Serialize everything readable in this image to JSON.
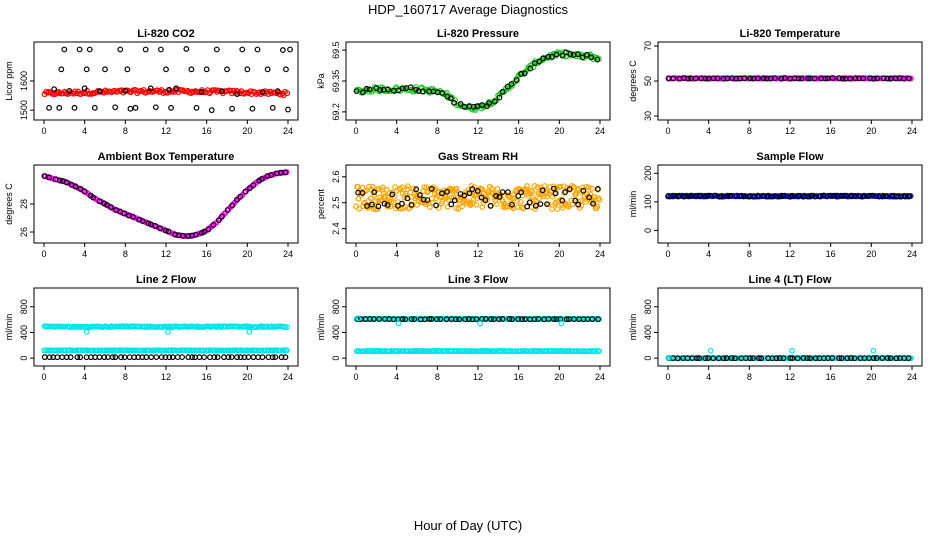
{
  "title": "HDP_160717  Average Diagnostics",
  "xlabel": "Hour of Day (UTC)",
  "colors": {
    "black": "#000000",
    "red": "#ff0000",
    "green": "#22cc22",
    "magenta": "#ff00ff",
    "orange": "#ffa500",
    "blue": "#0000cc",
    "cyan": "#00e5e5"
  },
  "x_ticks": [
    "0",
    "4",
    "8",
    "12",
    "16",
    "20",
    "24"
  ],
  "chart_data": [
    {
      "type": "scatter",
      "title": "Li-820 CO2",
      "ylabel": "Licor ppm",
      "xlim": [
        0,
        24
      ],
      "ylim": [
        1480,
        1720
      ],
      "yticks": [
        1500,
        1600
      ],
      "series": [
        {
          "color": "#ff0000",
          "style": "band",
          "y_start": 1557,
          "y_end": 1560,
          "y_mid": 1572,
          "noise": 6
        },
        {
          "color": "#000000",
          "points": [
            [
              0.5,
              1508
            ],
            [
              1,
              1572
            ],
            [
              1.5,
              1508
            ],
            [
              1.7,
              1640
            ],
            [
              2,
              1708
            ],
            [
              2.5,
              1566
            ],
            [
              3,
              1508
            ],
            [
              3.5,
              1708
            ],
            [
              4,
              1575
            ],
            [
              4.2,
              1640
            ],
            [
              4.5,
              1708
            ],
            [
              5,
              1508
            ],
            [
              5.5,
              1565
            ],
            [
              6,
              1640
            ],
            [
              7,
              1510
            ],
            [
              7.5,
              1708
            ],
            [
              8,
              1566
            ],
            [
              8.2,
              1640
            ],
            [
              8.5,
              1505
            ],
            [
              9,
              1508
            ],
            [
              10,
              1708
            ],
            [
              10.5,
              1575
            ],
            [
              11,
              1510
            ],
            [
              11.5,
              1708
            ],
            [
              12,
              1640
            ],
            [
              12.3,
              1570
            ],
            [
              12.5,
              1508
            ],
            [
              13,
              1575
            ],
            [
              14,
              1710
            ],
            [
              14.5,
              1640
            ],
            [
              15,
              1508
            ],
            [
              15.5,
              1562
            ],
            [
              16,
              1640
            ],
            [
              16.5,
              1500
            ],
            [
              17,
              1708
            ],
            [
              17.5,
              1565
            ],
            [
              18,
              1640
            ],
            [
              18.5,
              1505
            ],
            [
              19,
              1555
            ],
            [
              19.5,
              1708
            ],
            [
              20,
              1640
            ],
            [
              20.5,
              1505
            ],
            [
              21,
              1708
            ],
            [
              21.5,
              1562
            ],
            [
              22,
              1640
            ],
            [
              22.5,
              1508
            ],
            [
              23,
              1565
            ],
            [
              23.5,
              1706
            ],
            [
              23.8,
              1640
            ],
            [
              24,
              1502
            ],
            [
              24.2,
              1708
            ]
          ]
        }
      ]
    },
    {
      "type": "scatter",
      "title": "Li-820 Pressure",
      "ylabel": "kPa",
      "xlim": [
        0,
        24
      ],
      "ylim": [
        69.18,
        69.52
      ],
      "yticks": [
        69.2,
        69.35,
        69.5
      ],
      "series": [
        {
          "color": "#22cc22",
          "style": "curve",
          "noise": 0.012,
          "curve": [
            [
              0,
              69.3
            ],
            [
              2,
              69.31
            ],
            [
              4,
              69.31
            ],
            [
              6,
              69.31
            ],
            [
              8,
              69.3
            ],
            [
              9,
              69.28
            ],
            [
              10,
              69.24
            ],
            [
              11,
              69.22
            ],
            [
              12,
              69.22
            ],
            [
              13,
              69.24
            ],
            [
              14,
              69.27
            ],
            [
              15,
              69.32
            ],
            [
              16,
              69.37
            ],
            [
              17,
              69.41
            ],
            [
              18,
              69.45
            ],
            [
              19,
              69.47
            ],
            [
              20,
              69.48
            ],
            [
              21,
              69.48
            ],
            [
              22,
              69.47
            ],
            [
              23,
              69.47
            ],
            [
              24,
              69.46
            ]
          ]
        },
        {
          "color": "#000000",
          "style": "curve_sparse",
          "noise": 0.01,
          "curve": [
            [
              0,
              69.3
            ],
            [
              2,
              69.31
            ],
            [
              4,
              69.31
            ],
            [
              6,
              69.31
            ],
            [
              8,
              69.3
            ],
            [
              9,
              69.28
            ],
            [
              10,
              69.24
            ],
            [
              11,
              69.22
            ],
            [
              12,
              69.22
            ],
            [
              13,
              69.24
            ],
            [
              14,
              69.27
            ],
            [
              15,
              69.32
            ],
            [
              16,
              69.37
            ],
            [
              17,
              69.41
            ],
            [
              18,
              69.45
            ],
            [
              19,
              69.47
            ],
            [
              20,
              69.48
            ],
            [
              21,
              69.48
            ],
            [
              22,
              69.47
            ],
            [
              23,
              69.47
            ],
            [
              24,
              69.46
            ]
          ]
        }
      ]
    },
    {
      "type": "scatter",
      "title": "Li-820 Temperature",
      "ylabel": "degrees C",
      "xlim": [
        0,
        24
      ],
      "ylim": [
        30,
        70
      ],
      "yticks": [
        30,
        50,
        70
      ],
      "series": [
        {
          "color": "#ff00ff",
          "style": "flat",
          "y": 51.5,
          "noise": 0.2
        },
        {
          "color": "#000000",
          "style": "flat_sparse",
          "y": 51.5,
          "noise": 0.2
        }
      ]
    },
    {
      "type": "scatter",
      "title": "Ambient Box Temperature",
      "ylabel": "degrees C",
      "xlim": [
        0,
        24
      ],
      "ylim": [
        25.5,
        30.5
      ],
      "yticks": [
        26,
        28
      ],
      "series": [
        {
          "color": "#ff00ff",
          "style": "curve",
          "noise": 0.02,
          "curve": [
            [
              0,
              30.0
            ],
            [
              1,
              29.8
            ],
            [
              2,
              29.6
            ],
            [
              3,
              29.3
            ],
            [
              4,
              28.9
            ],
            [
              5,
              28.4
            ],
            [
              6,
              28.0
            ],
            [
              7,
              27.6
            ],
            [
              8,
              27.3
            ],
            [
              9,
              27.0
            ],
            [
              10,
              26.7
            ],
            [
              11,
              26.4
            ],
            [
              12,
              26.1
            ],
            [
              13,
              25.8
            ],
            [
              14,
              25.7
            ],
            [
              15,
              25.8
            ],
            [
              16,
              26.1
            ],
            [
              17,
              26.7
            ],
            [
              18,
              27.5
            ],
            [
              19,
              28.3
            ],
            [
              20,
              29.0
            ],
            [
              21,
              29.6
            ],
            [
              22,
              30.0
            ],
            [
              23,
              30.2
            ],
            [
              24,
              30.3
            ]
          ]
        },
        {
          "color": "#000000",
          "style": "curve_sparse",
          "noise": 0.02,
          "curve": [
            [
              0,
              30.0
            ],
            [
              1,
              29.8
            ],
            [
              2,
              29.6
            ],
            [
              3,
              29.3
            ],
            [
              4,
              28.9
            ],
            [
              5,
              28.4
            ],
            [
              6,
              28.0
            ],
            [
              7,
              27.6
            ],
            [
              8,
              27.3
            ],
            [
              9,
              27.0
            ],
            [
              10,
              26.7
            ],
            [
              11,
              26.4
            ],
            [
              12,
              26.1
            ],
            [
              13,
              25.8
            ],
            [
              14,
              25.7
            ],
            [
              15,
              25.8
            ],
            [
              16,
              26.1
            ],
            [
              17,
              26.7
            ],
            [
              18,
              27.5
            ],
            [
              19,
              28.3
            ],
            [
              20,
              29.0
            ],
            [
              21,
              29.6
            ],
            [
              22,
              30.0
            ],
            [
              23,
              30.2
            ],
            [
              24,
              30.3
            ]
          ]
        }
      ]
    },
    {
      "type": "scatter",
      "title": "Gas Stream RH",
      "ylabel": "percent",
      "xlim": [
        0,
        24
      ],
      "ylim": [
        2.36,
        2.63
      ],
      "yticks": [
        2.4,
        2.5,
        2.6
      ],
      "series": [
        {
          "color": "#ffa500",
          "style": "cloud",
          "y": 2.52,
          "noise": 0.045
        },
        {
          "color": "#000000",
          "style": "cloud_sparse",
          "y": 2.52,
          "noise": 0.035
        }
      ]
    },
    {
      "type": "scatter",
      "title": "Sample Flow",
      "ylabel": "ml/min",
      "xlim": [
        0,
        24
      ],
      "ylim": [
        -30,
        215
      ],
      "yticks": [
        0,
        100,
        200
      ],
      "series": [
        {
          "color": "#0000cc",
          "style": "flat",
          "y": 120,
          "noise": 2
        },
        {
          "color": "#000000",
          "style": "flat_sparse",
          "y": 120,
          "noise": 2
        }
      ]
    },
    {
      "type": "scatter",
      "title": "Line 2 Flow",
      "ylabel": "ml/min",
      "xlim": [
        0,
        24
      ],
      "ylim": [
        -60,
        1030
      ],
      "yticks": [
        0,
        400,
        800
      ],
      "series": [
        {
          "color": "#00e5e5",
          "style": "flat",
          "y": 490,
          "noise": 8
        },
        {
          "color": "#00e5e5",
          "style": "flat",
          "y": 120,
          "noise": 4
        },
        {
          "color": "#000000",
          "style": "flat_sparse",
          "y": 15,
          "noise": 1
        },
        {
          "color": "#00e5e5",
          "points": [
            [
              4.2,
              410
            ],
            [
              12.2,
              410
            ],
            [
              20.2,
              410
            ]
          ]
        }
      ]
    },
    {
      "type": "scatter",
      "title": "Line 3 Flow",
      "ylabel": "ml/min",
      "xlim": [
        0,
        24
      ],
      "ylim": [
        -60,
        1030
      ],
      "yticks": [
        0,
        400,
        800
      ],
      "series": [
        {
          "color": "#00e5e5",
          "style": "flat",
          "y": 110,
          "noise": 4
        },
        {
          "color": "#00e5e5",
          "style": "flat",
          "y": 610,
          "noise": 3
        },
        {
          "color": "#000000",
          "style": "flat_sparse",
          "y": 608,
          "noise": 3
        },
        {
          "color": "#00e5e5",
          "points": [
            [
              0.2,
              620
            ],
            [
              4.2,
              540
            ],
            [
              12.2,
              540
            ],
            [
              20.2,
              540
            ]
          ]
        }
      ]
    },
    {
      "type": "scatter",
      "title": "Line 4 (LT) Flow",
      "ylabel": "ml/min",
      "xlim": [
        0,
        24
      ],
      "ylim": [
        -60,
        1030
      ],
      "yticks": [
        0,
        400,
        800
      ],
      "series": [
        {
          "color": "#00e5e5",
          "style": "flat",
          "y": 0,
          "noise": 2
        },
        {
          "color": "#000000",
          "style": "flat_sparse",
          "y": 0,
          "noise": 2
        },
        {
          "color": "#00e5e5",
          "points": [
            [
              4.2,
              115
            ],
            [
              12.2,
              115
            ],
            [
              20.2,
              115
            ],
            [
              0.1,
              5
            ]
          ]
        }
      ]
    }
  ]
}
